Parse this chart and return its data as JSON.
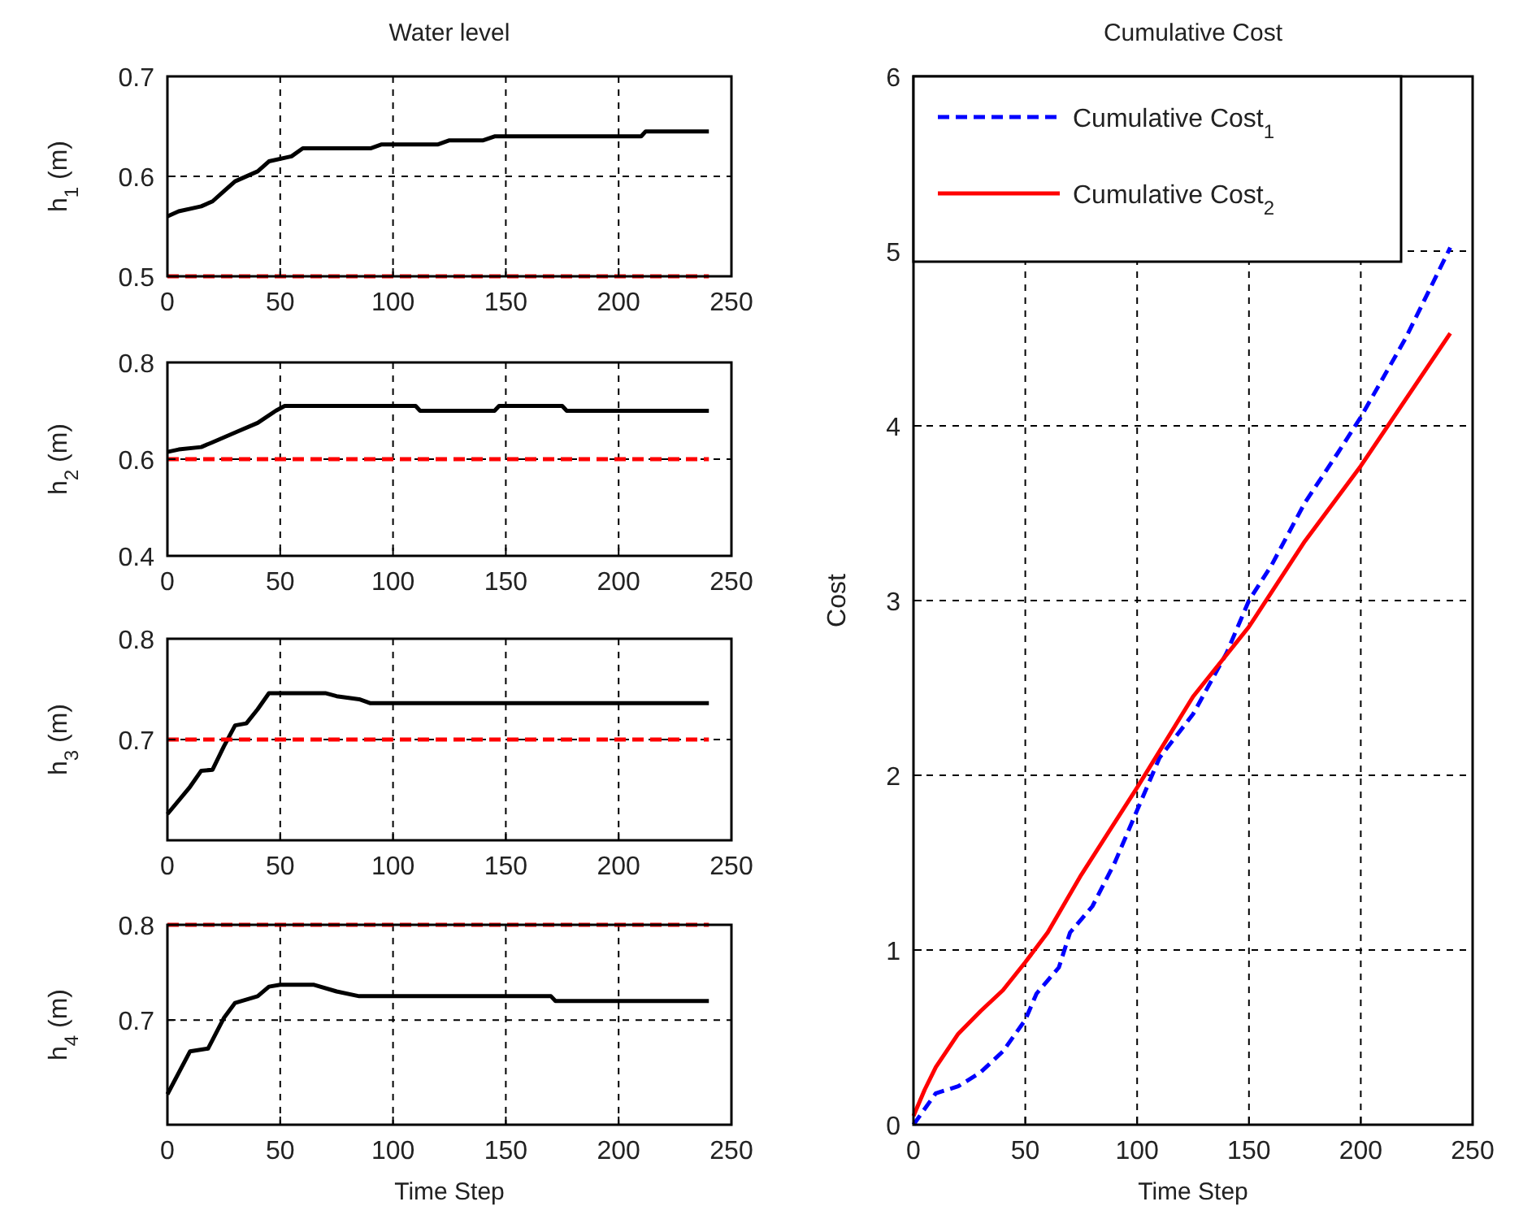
{
  "chart_data": [
    {
      "type": "line",
      "title": "Water level",
      "ylabel": "h$_{1}$ (m)",
      "xlim": [
        0,
        250
      ],
      "xticks": [
        0,
        50,
        100,
        150,
        200,
        250
      ],
      "ylim": [
        0.5,
        0.7
      ],
      "yticks": [
        0.5,
        0.6,
        0.7
      ],
      "grid": true,
      "series": [
        {
          "color": "#000000",
          "line_style": "solid",
          "x": [
            0,
            5,
            15,
            20,
            25,
            30,
            40,
            45,
            55,
            60,
            90,
            95,
            120,
            125,
            140,
            145,
            210,
            212,
            240
          ],
          "values": [
            0.56,
            0.565,
            0.57,
            0.575,
            0.585,
            0.595,
            0.605,
            0.615,
            0.62,
            0.628,
            0.628,
            0.632,
            0.632,
            0.636,
            0.636,
            0.64,
            0.64,
            0.645,
            0.645
          ]
        },
        {
          "color": "#ff0000",
          "line_style": "dashed",
          "x": [
            0,
            240
          ],
          "values": [
            0.5,
            0.5
          ]
        }
      ]
    },
    {
      "type": "line",
      "ylabel": "h$_{2}$ (m)",
      "xlim": [
        0,
        250
      ],
      "xticks": [
        0,
        50,
        100,
        150,
        200,
        250
      ],
      "ylim": [
        0.4,
        0.8
      ],
      "yticks": [
        0.4,
        0.6,
        0.8
      ],
      "grid": true,
      "series": [
        {
          "color": "#000000",
          "line_style": "solid",
          "x": [
            0,
            5,
            15,
            20,
            30,
            40,
            48,
            52,
            110,
            112,
            145,
            147,
            175,
            177,
            240
          ],
          "values": [
            0.615,
            0.62,
            0.625,
            0.635,
            0.655,
            0.675,
            0.7,
            0.71,
            0.71,
            0.7,
            0.7,
            0.71,
            0.71,
            0.7,
            0.7
          ]
        },
        {
          "color": "#ff0000",
          "line_style": "dashed",
          "x": [
            0,
            240
          ],
          "values": [
            0.6,
            0.6
          ]
        }
      ]
    },
    {
      "type": "line",
      "ylabel": "h$_{3}$ (m)",
      "xlim": [
        0,
        250
      ],
      "xticks": [
        0,
        50,
        100,
        150,
        200,
        250
      ],
      "ylim": [
        0.6,
        0.8
      ],
      "yticks": [
        0.7,
        0.8
      ],
      "grid": true,
      "series": [
        {
          "color": "#000000",
          "line_style": "solid",
          "x": [
            0,
            10,
            15,
            20,
            25,
            30,
            35,
            40,
            45,
            70,
            75,
            85,
            90,
            240
          ],
          "values": [
            0.626,
            0.653,
            0.669,
            0.67,
            0.693,
            0.714,
            0.716,
            0.73,
            0.746,
            0.746,
            0.743,
            0.74,
            0.736,
            0.736
          ]
        },
        {
          "color": "#ff0000",
          "line_style": "dashed",
          "x": [
            0,
            240
          ],
          "values": [
            0.7,
            0.7
          ]
        }
      ]
    },
    {
      "type": "line",
      "ylabel": "h$_{4}$ (m)",
      "xlabel": "Time Step",
      "xlim": [
        0,
        250
      ],
      "xticks": [
        0,
        50,
        100,
        150,
        200,
        250
      ],
      "ylim": [
        0.59,
        0.8
      ],
      "yticks": [
        0.7,
        0.8
      ],
      "grid": true,
      "series": [
        {
          "color": "#000000",
          "line_style": "solid",
          "x": [
            0,
            10,
            18,
            25,
            30,
            40,
            45,
            50,
            65,
            75,
            85,
            170,
            172,
            240
          ],
          "values": [
            0.622,
            0.667,
            0.67,
            0.702,
            0.718,
            0.725,
            0.735,
            0.737,
            0.737,
            0.73,
            0.725,
            0.725,
            0.72,
            0.72
          ]
        },
        {
          "color": "#ff0000",
          "line_style": "dashed",
          "x": [
            0,
            240
          ],
          "values": [
            0.8,
            0.8
          ]
        }
      ]
    },
    {
      "type": "line",
      "title": "Cumulative Cost",
      "xlabel": "Time Step",
      "ylabel": "Cost",
      "xlim": [
        0,
        250
      ],
      "xticks": [
        0,
        50,
        100,
        150,
        200,
        250
      ],
      "ylim": [
        0,
        6
      ],
      "yticks": [
        0,
        1,
        2,
        3,
        4,
        5,
        6
      ],
      "grid": true,
      "legend": "top left",
      "series": [
        {
          "name": "Cumulative Cost$_{1}$",
          "color": "#0000ff",
          "line_style": "dashed",
          "x": [
            0,
            10,
            20,
            30,
            40,
            50,
            55,
            65,
            70,
            80,
            90,
            100,
            110,
            125,
            140,
            150,
            160,
            175,
            190,
            200,
            220,
            240
          ],
          "values": [
            0,
            0.18,
            0.22,
            0.3,
            0.42,
            0.6,
            0.75,
            0.9,
            1.1,
            1.25,
            1.5,
            1.8,
            2.1,
            2.35,
            2.7,
            3.0,
            3.2,
            3.56,
            3.85,
            4.05,
            4.5,
            5.02
          ]
        },
        {
          "name": "Cumulative Cost$_{2}$",
          "color": "#ff0000",
          "line_style": "solid",
          "x": [
            0,
            5,
            10,
            20,
            30,
            40,
            50,
            60,
            75,
            100,
            125,
            150,
            175,
            200,
            240
          ],
          "values": [
            0.05,
            0.2,
            0.33,
            0.52,
            0.65,
            0.77,
            0.93,
            1.1,
            1.43,
            1.93,
            2.45,
            2.85,
            3.34,
            3.77,
            4.53
          ]
        }
      ]
    }
  ]
}
